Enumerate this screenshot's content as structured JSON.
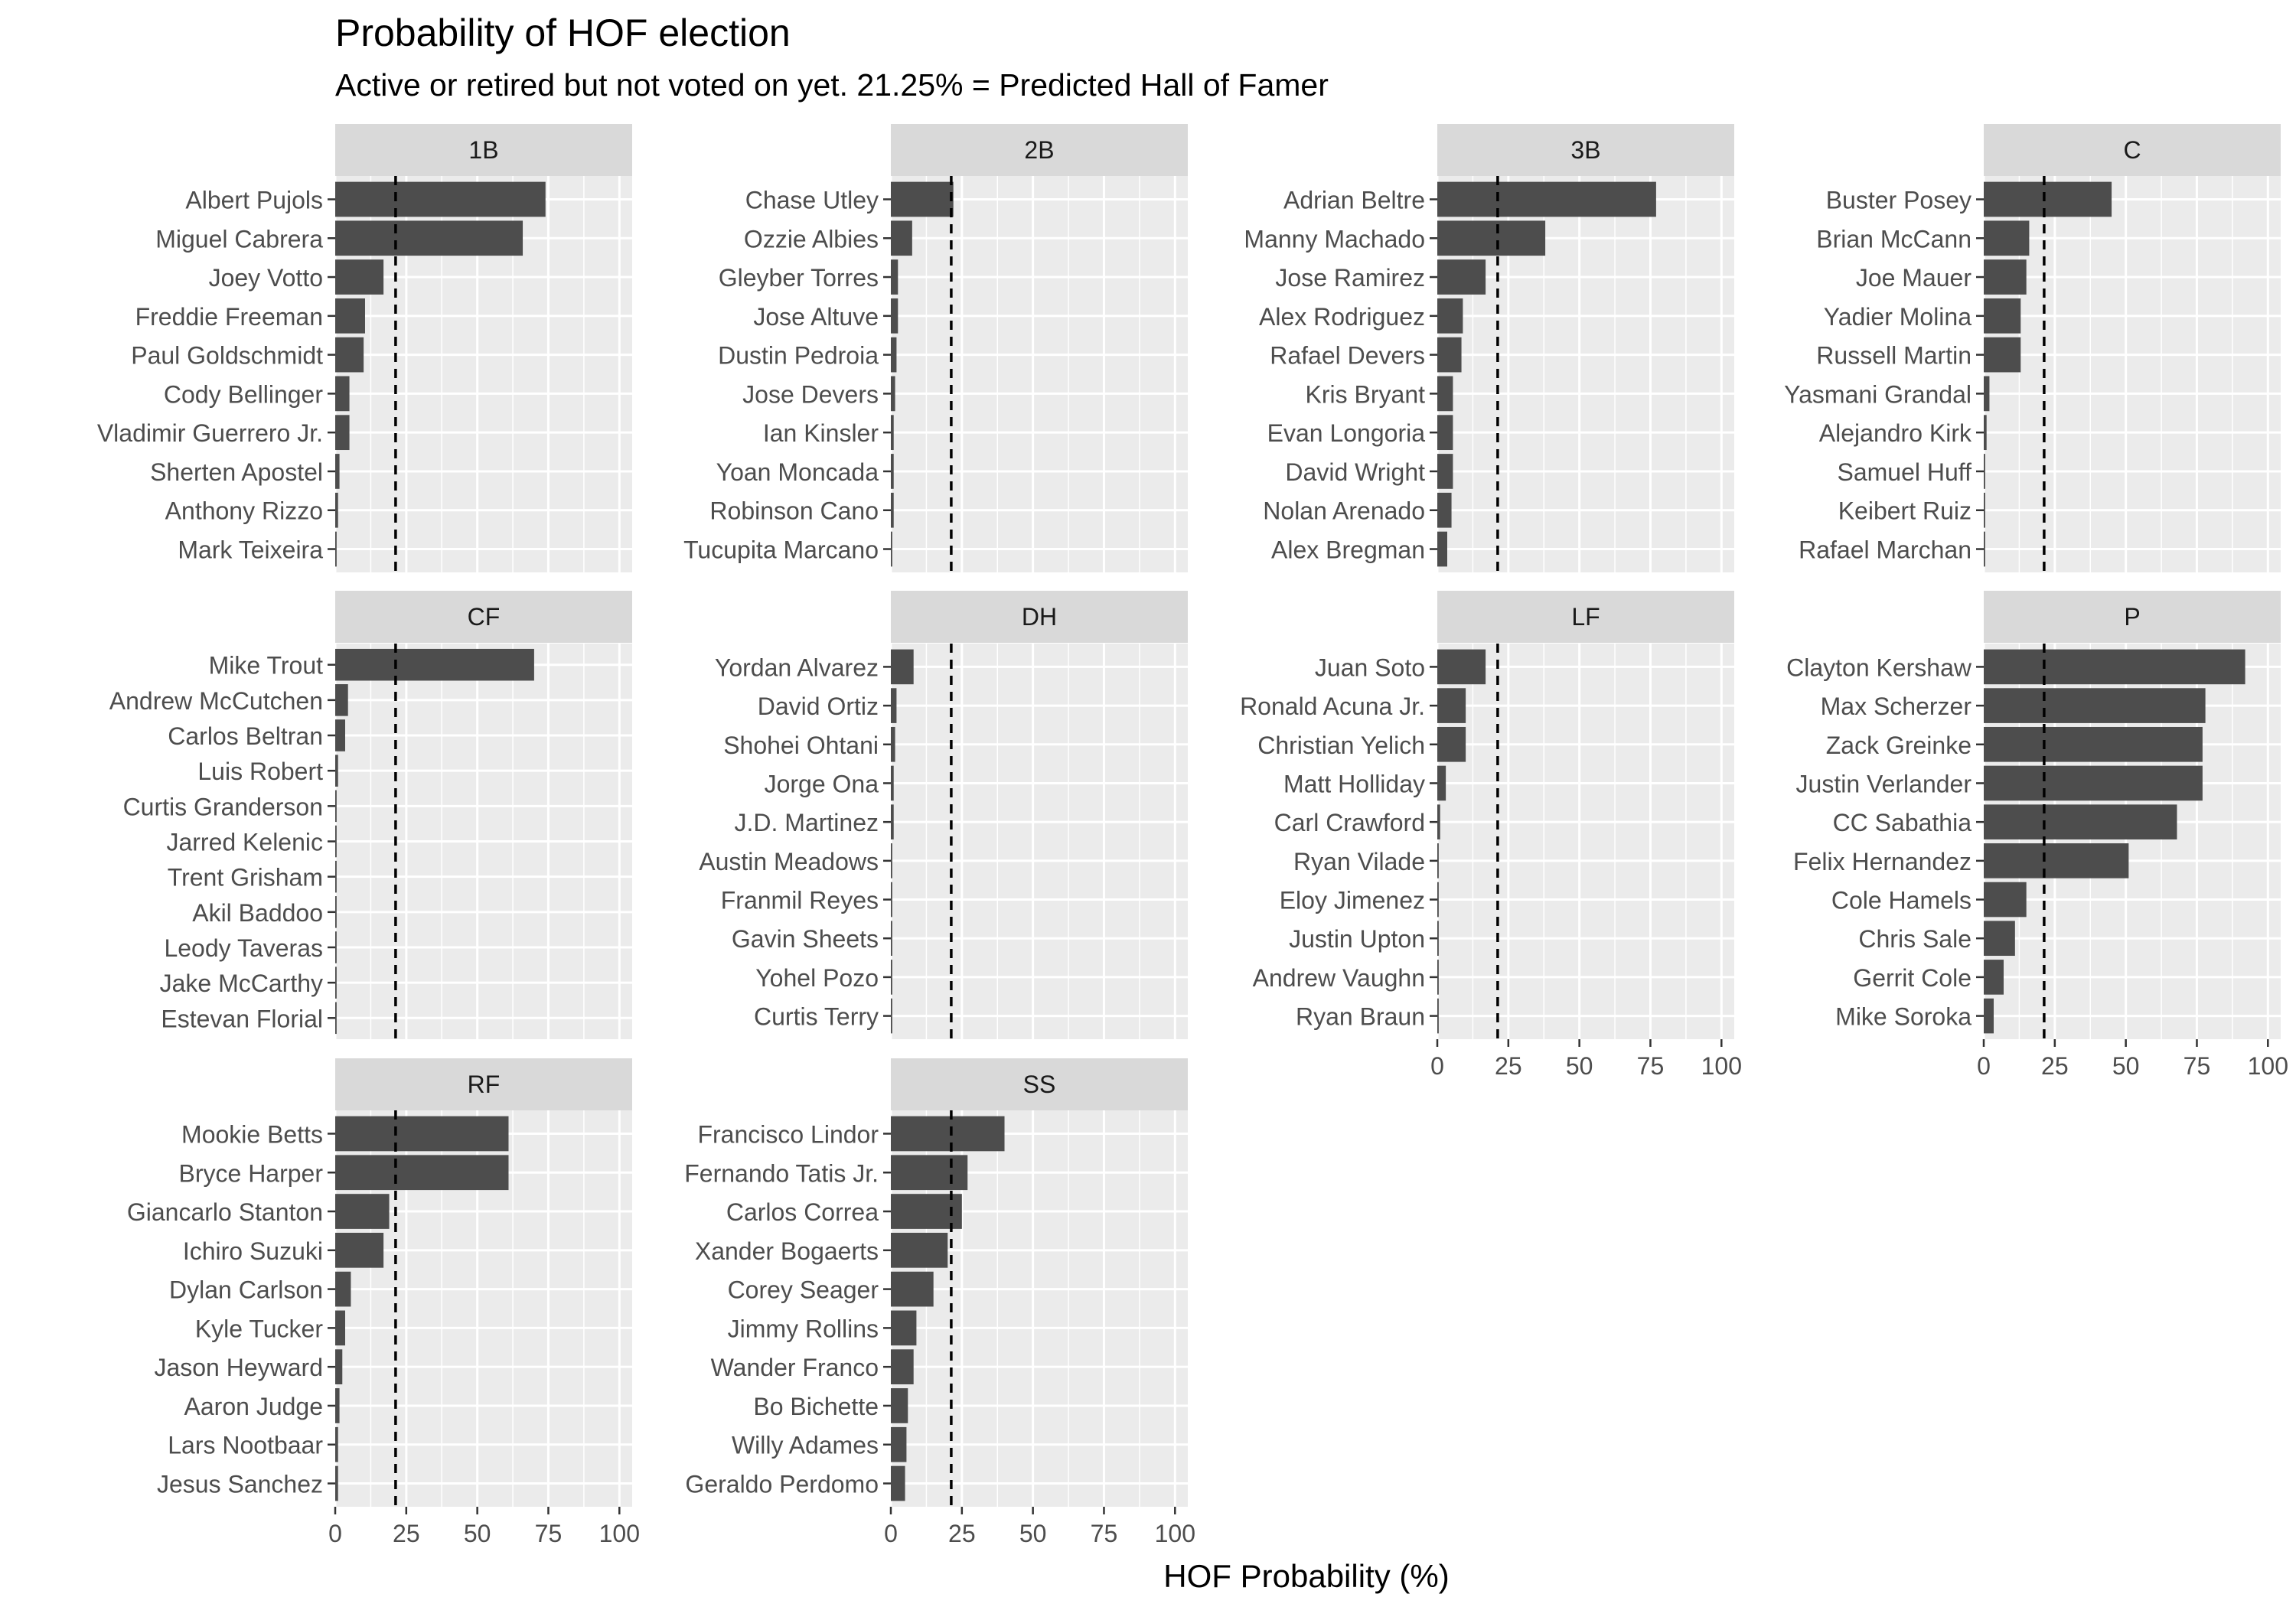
{
  "chart_data": {
    "type": "bar",
    "title": "Probability of HOF election",
    "subtitle": "Active or retired but not voted on yet. 21.25% = Predicted Hall of Famer",
    "xlabel": "HOF Probability (%)",
    "ylabel": "",
    "xlim": [
      0,
      100
    ],
    "ticks": [
      "0",
      "25",
      "50",
      "75",
      "100"
    ],
    "tick_values": [
      0,
      25,
      50,
      75,
      100
    ],
    "threshold": 21.25,
    "threshold_style": "dashed",
    "grid": true,
    "colors": {
      "bar": "#4d4d4d",
      "panel": "#ebebeb",
      "grid": "#ffffff",
      "strip": "#d9d9d9",
      "text": "#4d4d4d"
    },
    "panels": [
      {
        "name": "1B",
        "players": [
          "Albert Pujols",
          "Miguel Cabrera",
          "Joey Votto",
          "Freddie Freeman",
          "Paul Goldschmidt",
          "Cody Bellinger",
          "Vladimir Guerrero Jr.",
          "Sherten Apostel",
          "Anthony Rizzo",
          "Mark Teixeira"
        ],
        "values": [
          74,
          66,
          17,
          10.5,
          10,
          5,
          5,
          1.5,
          1,
          0.5
        ]
      },
      {
        "name": "2B",
        "players": [
          "Chase Utley",
          "Ozzie Albies",
          "Gleyber Torres",
          "Jose Altuve",
          "Dustin Pedroia",
          "Jose Devers",
          "Ian Kinsler",
          "Yoan Moncada",
          "Robinson Cano",
          "Tucupita Marcano"
        ],
        "values": [
          22,
          7.5,
          2.5,
          2.5,
          2,
          1.5,
          1,
          1,
          1,
          0.5
        ]
      },
      {
        "name": "3B",
        "players": [
          "Adrian Beltre",
          "Manny Machado",
          "Jose Ramirez",
          "Alex Rodriguez",
          "Rafael Devers",
          "Kris Bryant",
          "Evan Longoria",
          "David Wright",
          "Nolan Arenado",
          "Alex Bregman"
        ],
        "values": [
          77,
          38,
          17,
          9,
          8.5,
          5.5,
          5.5,
          5.5,
          5,
          3.5
        ]
      },
      {
        "name": "C",
        "players": [
          "Buster Posey",
          "Brian McCann",
          "Joe Mauer",
          "Yadier Molina",
          "Russell Martin",
          "Yasmani Grandal",
          "Alejandro Kirk",
          "Samuel Huff",
          "Keibert Ruiz",
          "Rafael Marchan"
        ],
        "values": [
          45,
          16,
          15,
          13,
          13,
          2,
          1,
          0.5,
          0.5,
          0.5
        ]
      },
      {
        "name": "CF",
        "players": [
          "Mike Trout",
          "Andrew McCutchen",
          "Carlos Beltran",
          "Luis Robert",
          "Curtis Granderson",
          "Jarred Kelenic",
          "Trent Grisham",
          "Akil Baddoo",
          "Leody Taveras",
          "Jake McCarthy",
          "Estevan Florial"
        ],
        "values": [
          70,
          4.5,
          3.5,
          1,
          0.5,
          0.5,
          0.5,
          0.5,
          0.5,
          0.5,
          0.5
        ]
      },
      {
        "name": "DH",
        "players": [
          "Yordan Alvarez",
          "David Ortiz",
          "Shohei Ohtani",
          "Jorge Ona",
          "J.D. Martinez",
          "Austin Meadows",
          "Franmil Reyes",
          "Gavin Sheets",
          "Yohel Pozo",
          "Curtis Terry"
        ],
        "values": [
          8,
          2,
          1.5,
          1,
          1,
          0.5,
          0.5,
          0.5,
          0.5,
          0.5
        ]
      },
      {
        "name": "LF",
        "players": [
          "Juan Soto",
          "Ronald Acuna Jr.",
          "Christian Yelich",
          "Matt Holliday",
          "Carl Crawford",
          "Ryan Vilade",
          "Eloy Jimenez",
          "Justin Upton",
          "Andrew Vaughn",
          "Ryan Braun"
        ],
        "values": [
          17,
          10,
          10,
          3,
          1,
          0.5,
          0.5,
          0.5,
          0.5,
          0.5
        ]
      },
      {
        "name": "P",
        "players": [
          "Clayton Kershaw",
          "Max Scherzer",
          "Zack Greinke",
          "Justin Verlander",
          "CC Sabathia",
          "Felix Hernandez",
          "Cole Hamels",
          "Chris Sale",
          "Gerrit Cole",
          "Mike Soroka"
        ],
        "values": [
          92,
          78,
          77,
          77,
          68,
          51,
          15,
          11,
          7,
          3.5
        ]
      },
      {
        "name": "RF",
        "players": [
          "Mookie Betts",
          "Bryce Harper",
          "Giancarlo Stanton",
          "Ichiro Suzuki",
          "Dylan Carlson",
          "Kyle Tucker",
          "Jason Heyward",
          "Aaron Judge",
          "Lars Nootbaar",
          "Jesus Sanchez"
        ],
        "values": [
          61,
          61,
          19,
          17,
          5.5,
          3.5,
          2.5,
          1.5,
          1,
          1
        ]
      },
      {
        "name": "SS",
        "players": [
          "Francisco Lindor",
          "Fernando Tatis Jr.",
          "Carlos Correa",
          "Xander Bogaerts",
          "Corey Seager",
          "Jimmy Rollins",
          "Wander Franco",
          "Bo Bichette",
          "Willy Adames",
          "Geraldo Perdomo"
        ],
        "values": [
          40,
          27,
          25,
          20,
          15,
          9,
          8,
          6,
          5.5,
          5
        ]
      }
    ]
  }
}
